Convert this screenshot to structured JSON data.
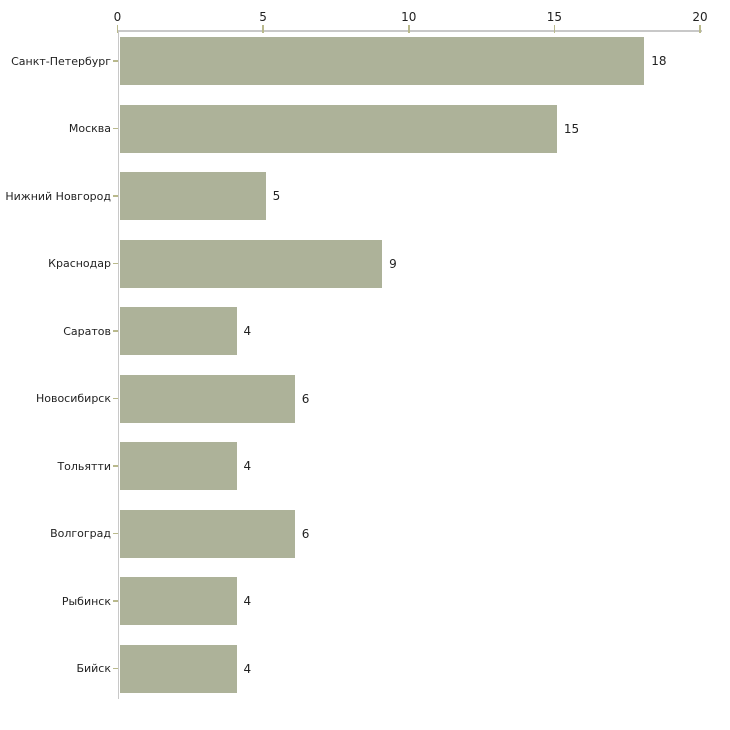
{
  "chart_data": {
    "type": "bar",
    "orientation": "horizontal",
    "title": "",
    "xlabel": "",
    "ylabel": "",
    "categories": [
      "Санкт-Петербург",
      "Москва",
      "Нижний Новгород",
      "Краснодар",
      "Саратов",
      "Новосибирск",
      "Тольятти",
      "Волгоград",
      "Рыбинск",
      "Бийск"
    ],
    "values": [
      18,
      15,
      5,
      9,
      4,
      6,
      4,
      6,
      4,
      4
    ],
    "value_labels": [
      "18",
      "15",
      "5",
      "9",
      "4",
      "6",
      "4",
      "6",
      "4",
      "4"
    ],
    "x_ticks": [
      "0",
      "5",
      "10",
      "15",
      "20"
    ],
    "x_tick_values": [
      0,
      5,
      10,
      15,
      20
    ],
    "xlim": [
      0,
      20
    ],
    "grid": false,
    "legend": false,
    "axis_position": "top",
    "colors": {
      "bar_fill": "#adb299",
      "axis_line": "#c8c8c8",
      "tick_mark": "#b9b98c",
      "text": "#222222",
      "background": "#ffffff"
    }
  }
}
